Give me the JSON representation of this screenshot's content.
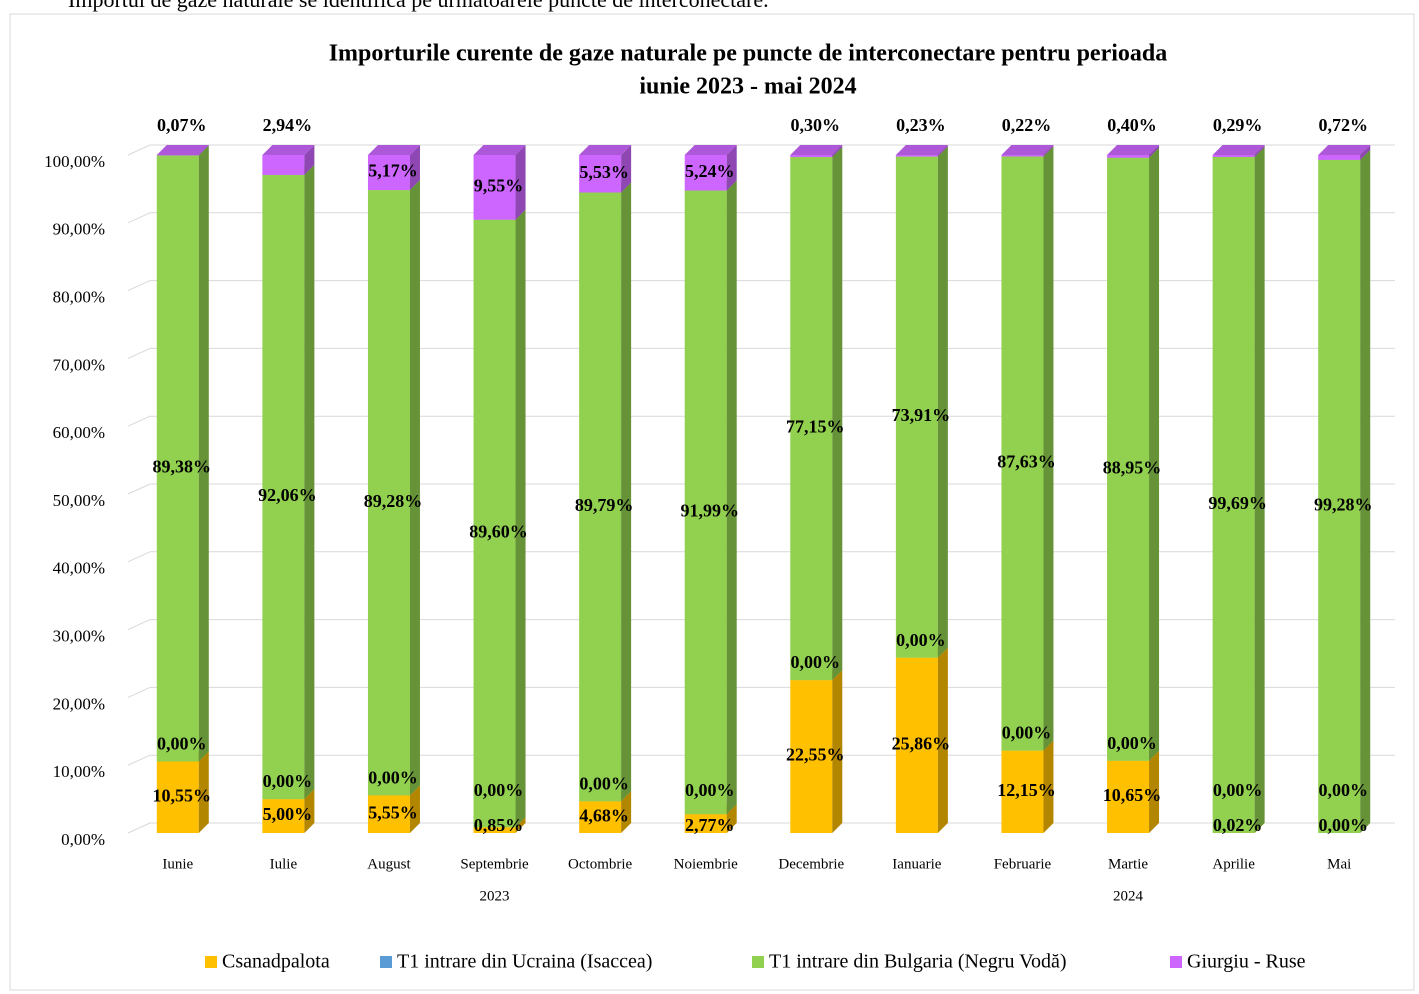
{
  "intro_text": "Importul de gaze naturale se identifică pe următoarele puncte de interconectare.",
  "chart_data": {
    "type": "bar3d_stacked",
    "title": "Importurile curente de gaze naturale pe puncte de interconectare pentru perioada iunie 2023 - mai 2024",
    "title_lines": [
      "Importurile curente de gaze naturale pe puncte de interconectare pentru perioada",
      "iunie 2023 - mai 2024"
    ],
    "categories": [
      "Iunie",
      "Iulie",
      "August",
      "Septembrie",
      "Octombrie",
      "Noiembrie",
      "Decembrie",
      "Ianuarie",
      "Februarie",
      "Martie",
      "Aprilie",
      "Mai"
    ],
    "group_labels": [
      "2023",
      "2024"
    ],
    "ylim": [
      0,
      100
    ],
    "yticks": [
      {
        "value": 0,
        "label": "0,00%"
      },
      {
        "value": 10,
        "label": "10,00%"
      },
      {
        "value": 20,
        "label": "20,00%"
      },
      {
        "value": 30,
        "label": "30,00%"
      },
      {
        "value": 40,
        "label": "40,00%"
      },
      {
        "value": 50,
        "label": "50,00%"
      },
      {
        "value": 60,
        "label": "60,00%"
      },
      {
        "value": 70,
        "label": "70,00%"
      },
      {
        "value": 80,
        "label": "80,00%"
      },
      {
        "value": 90,
        "label": "90,00%"
      },
      {
        "value": 100,
        "label": "100,00%"
      }
    ],
    "grid": true,
    "legend": "bottom",
    "series": [
      {
        "name": "Csanadpalota",
        "color": "#ffc000",
        "values": [
          10.55,
          5.0,
          5.55,
          0.85,
          4.68,
          2.77,
          22.55,
          25.86,
          12.15,
          10.65,
          0.02,
          0.0
        ],
        "value_labels": [
          "10,55%",
          "5,00%",
          "5,55%",
          "0,85%",
          "4,68%",
          "2,77%",
          "22,55%",
          "25,86%",
          "12,15%",
          "10,65%",
          "0,02%",
          "0,00%"
        ]
      },
      {
        "name": "T1 intrare din Ucraina (Isaccea)",
        "color": "#5b9bd5",
        "values": [
          0,
          0,
          0,
          0,
          0,
          0,
          0,
          0,
          0,
          0,
          0,
          0
        ],
        "value_labels": [
          "0,00%",
          "0,00%",
          "0,00%",
          "0,00%",
          "0,00%",
          "0,00%",
          "0,00%",
          "0,00%",
          "0,00%",
          "0,00%",
          "0,00%",
          "0,00%"
        ]
      },
      {
        "name": "T1 intrare din Bulgaria (Negru Vodă)",
        "color": "#92d050",
        "values": [
          89.38,
          92.06,
          89.28,
          89.6,
          89.79,
          91.99,
          77.15,
          73.91,
          87.63,
          88.95,
          99.69,
          99.28
        ],
        "value_labels": [
          "89,38%",
          "92,06%",
          "89,28%",
          "89,60%",
          "89,79%",
          "91,99%",
          "77,15%",
          "73,91%",
          "87,63%",
          "88,95%",
          "99,69%",
          "99,28%"
        ]
      },
      {
        "name": "Giurgiu - Ruse",
        "color": "#cc66ff",
        "values": [
          0.07,
          2.94,
          5.17,
          9.55,
          5.53,
          5.24,
          0.3,
          0.23,
          0.22,
          0.4,
          0.29,
          0.72
        ],
        "value_labels": [
          "0,07%",
          "2,94%",
          "5,17%",
          "9,55%",
          "5,53%",
          "5,24%",
          "0,30%",
          "0,23%",
          "0,22%",
          "0,40%",
          "0,29%",
          "0,72%"
        ]
      }
    ]
  }
}
